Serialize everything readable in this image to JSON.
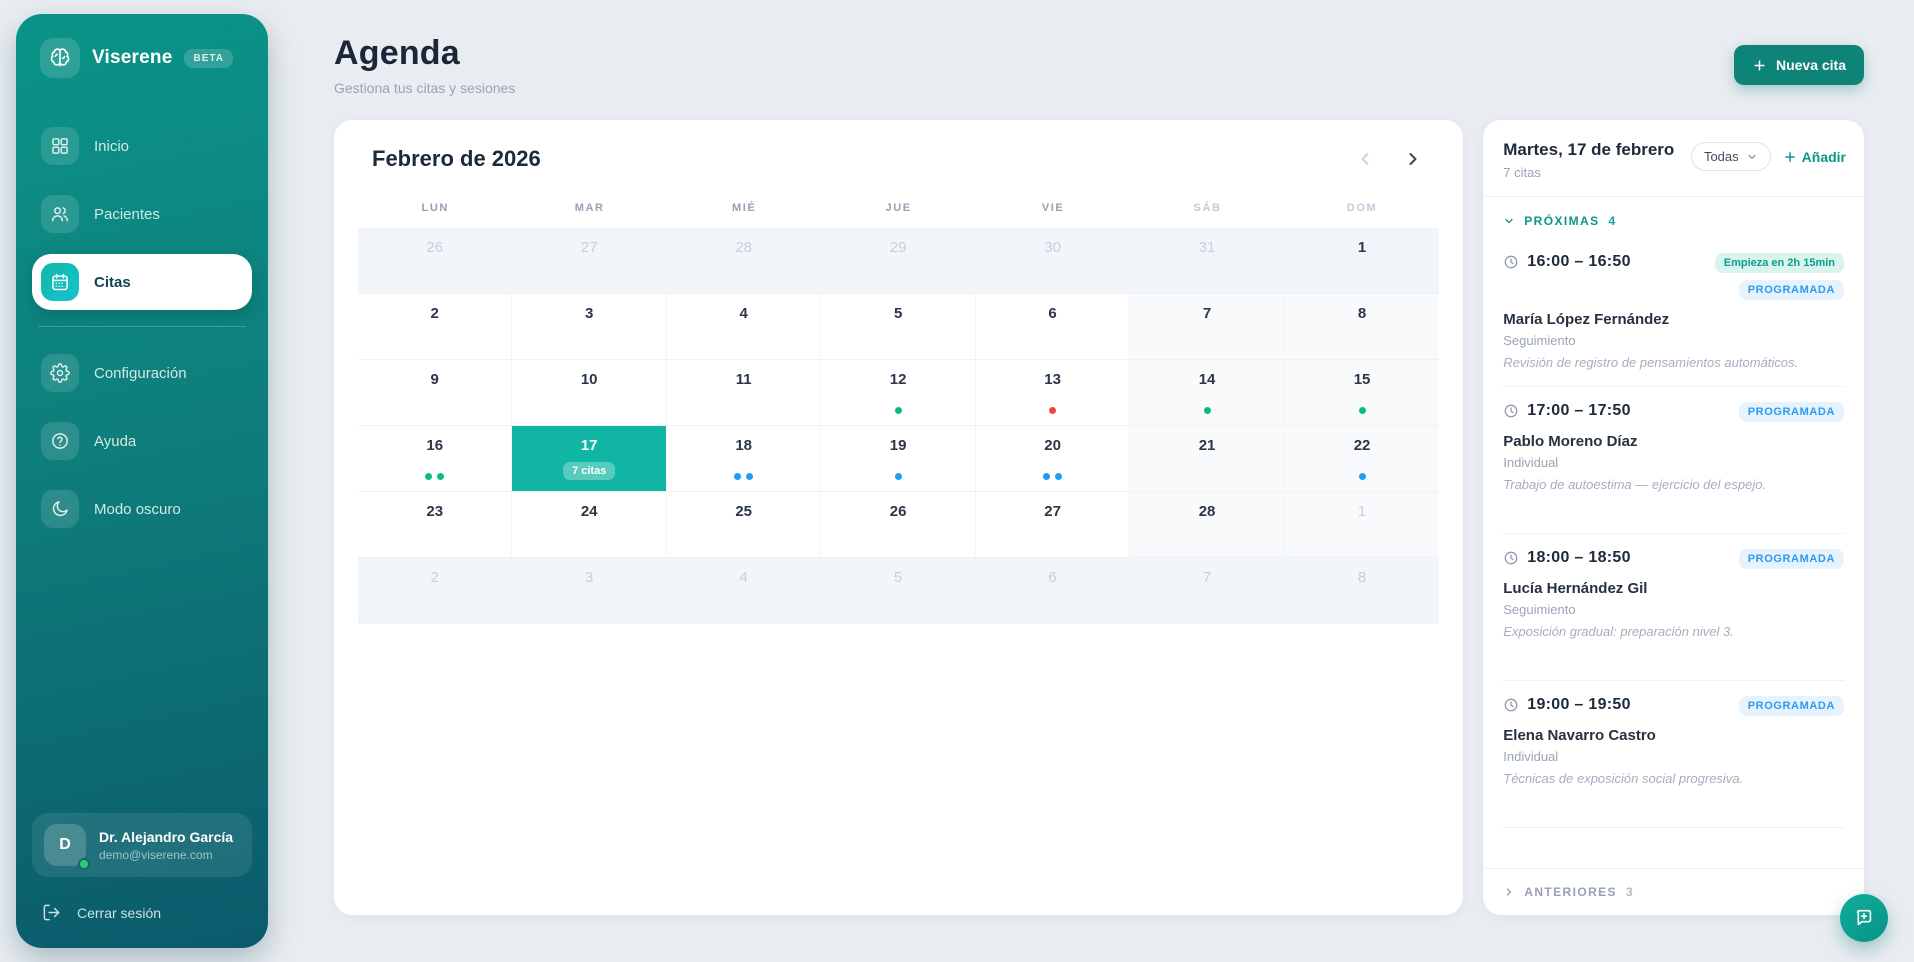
{
  "app": {
    "name": "Viserene",
    "badge": "BETA"
  },
  "sidebar": {
    "primary": [
      {
        "label": "Inicio",
        "icon": "grid-icon",
        "active": false
      },
      {
        "label": "Pacientes",
        "icon": "people-icon",
        "active": false
      },
      {
        "label": "Citas",
        "icon": "calendar-icon",
        "active": true
      }
    ],
    "secondary": [
      {
        "label": "Configuración",
        "icon": "gear-icon",
        "active": false
      },
      {
        "label": "Ayuda",
        "icon": "help-icon",
        "active": false
      },
      {
        "label": "Modo oscuro",
        "icon": "moon-icon",
        "active": false
      }
    ],
    "user": {
      "initial": "D",
      "name": "Dr. Alejandro García",
      "email": "demo@viserene.com",
      "status": "online"
    },
    "logout_label": "Cerrar sesión"
  },
  "header": {
    "title": "Agenda",
    "subtitle": "Gestiona tus citas y sesiones",
    "new_button_label": "Nueva cita"
  },
  "calendar": {
    "month_title": "Febrero de 2026",
    "weekdays": [
      "LUN",
      "MAR",
      "MIÉ",
      "JUE",
      "VIE",
      "SÁB",
      "DOM"
    ],
    "selected_day_badge": "7 citas",
    "weeks": [
      [
        {
          "day": "26",
          "out": true
        },
        {
          "day": "27",
          "out": true
        },
        {
          "day": "28",
          "out": true
        },
        {
          "day": "29",
          "out": true
        },
        {
          "day": "30",
          "out": true
        },
        {
          "day": "31",
          "out": true
        },
        {
          "day": "1"
        }
      ],
      [
        {
          "day": "2"
        },
        {
          "day": "3"
        },
        {
          "day": "4"
        },
        {
          "day": "5"
        },
        {
          "day": "6"
        },
        {
          "day": "7"
        },
        {
          "day": "8"
        }
      ],
      [
        {
          "day": "9"
        },
        {
          "day": "10"
        },
        {
          "day": "11"
        },
        {
          "day": "12",
          "dots": [
            "green"
          ]
        },
        {
          "day": "13",
          "dots": [
            "red"
          ]
        },
        {
          "day": "14",
          "dots": [
            "green"
          ]
        },
        {
          "day": "15",
          "dots": [
            "green"
          ]
        }
      ],
      [
        {
          "day": "16",
          "dots": [
            "green",
            "green"
          ]
        },
        {
          "day": "17",
          "selected": true
        },
        {
          "day": "18",
          "dots": [
            "blue",
            "blue"
          ]
        },
        {
          "day": "19",
          "dots": [
            "blue"
          ]
        },
        {
          "day": "20",
          "dots": [
            "blue",
            "blue"
          ]
        },
        {
          "day": "21"
        },
        {
          "day": "22",
          "dots": [
            "blue"
          ]
        }
      ],
      [
        {
          "day": "23"
        },
        {
          "day": "24"
        },
        {
          "day": "25"
        },
        {
          "day": "26"
        },
        {
          "day": "27"
        },
        {
          "day": "28"
        },
        {
          "day": "1",
          "out": true
        }
      ],
      [
        {
          "day": "2",
          "out": true
        },
        {
          "day": "3",
          "out": true
        },
        {
          "day": "4",
          "out": true
        },
        {
          "day": "5",
          "out": true
        },
        {
          "day": "6",
          "out": true
        },
        {
          "day": "7",
          "out": true
        },
        {
          "day": "8",
          "out": true
        }
      ]
    ]
  },
  "day_panel": {
    "title": "Martes, 17 de febrero",
    "subtitle": "7 citas",
    "filter_label": "Todas",
    "add_label": "Añadir",
    "upcoming_label": "PRÓXIMAS",
    "upcoming_count": "4",
    "previous_label": "ANTERIORES",
    "previous_count": "3",
    "appointments": [
      {
        "time": "16:00 – 16:50",
        "status": "PROGRAMADA",
        "starts_in": "Empieza en 2h 15min",
        "patient": "María López Fernández",
        "type": "Seguimiento",
        "note": "Revisión de registro de pensamientos automáticos."
      },
      {
        "time": "17:00 – 17:50",
        "status": "PROGRAMADA",
        "patient": "Pablo Moreno Díaz",
        "type": "Individual",
        "note": "Trabajo de autoestima — ejercicio del espejo."
      },
      {
        "time": "18:00 – 18:50",
        "status": "PROGRAMADA",
        "patient": "Lucía Hernández Gil",
        "type": "Seguimiento",
        "note": "Exposición gradual: preparación nivel 3."
      },
      {
        "time": "19:00 – 19:50",
        "status": "PROGRAMADA",
        "patient": "Elena Navarro Castro",
        "type": "Individual",
        "note": "Técnicas de exposición social progresiva."
      }
    ]
  },
  "colors": {
    "accent": "#0e9488",
    "selected_day": "#10b5a4",
    "status_blue": "#2d9bf0",
    "dot_green": "#10b981",
    "dot_red": "#ef4444",
    "dot_blue": "#1e9bf5"
  }
}
